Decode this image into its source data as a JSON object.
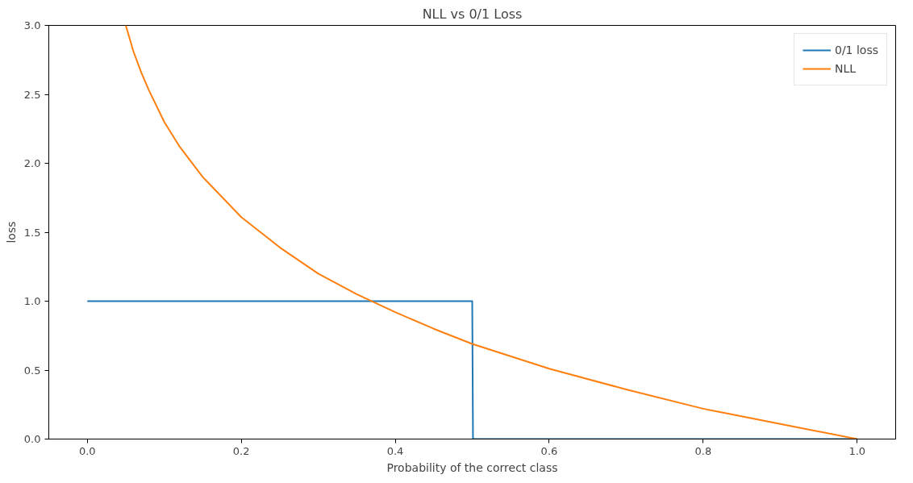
{
  "chart_data": {
    "type": "line",
    "title": "NLL vs 0/1 Loss",
    "xlabel": "Probability of the correct class",
    "ylabel": "loss",
    "xlim": [
      -0.05,
      1.05
    ],
    "ylim": [
      0,
      3
    ],
    "xticks": [
      {
        "value": 0,
        "label": "0.0"
      },
      {
        "value": 0.2,
        "label": "0.2"
      },
      {
        "value": 0.4,
        "label": "0.4"
      },
      {
        "value": 0.6,
        "label": "0.6"
      },
      {
        "value": 0.8,
        "label": "0.8"
      },
      {
        "value": 1,
        "label": "1.0"
      }
    ],
    "yticks": [
      {
        "value": 0,
        "label": "0.0"
      },
      {
        "value": 0.5,
        "label": "0.5"
      },
      {
        "value": 1,
        "label": "1.0"
      },
      {
        "value": 1.5,
        "label": "1.5"
      },
      {
        "value": 2,
        "label": "2.0"
      },
      {
        "value": 2.5,
        "label": "2.5"
      },
      {
        "value": 3,
        "label": "3.0"
      }
    ],
    "series": [
      {
        "name": "0/1 loss",
        "color": "#1f77b4",
        "x": [
          0,
          0.5,
          0.501,
          1
        ],
        "values": [
          1,
          1,
          0,
          0
        ]
      },
      {
        "name": "NLL",
        "color": "#ff7f0e",
        "x": [
          0.05,
          0.06,
          0.07,
          0.08,
          0.1,
          0.12,
          0.15,
          0.2,
          0.25,
          0.3,
          0.35,
          0.4,
          0.45,
          0.5,
          0.6,
          0.7,
          0.8,
          0.9,
          1.0
        ],
        "values": [
          3.0,
          2.81,
          2.66,
          2.53,
          2.3,
          2.12,
          1.9,
          1.61,
          1.39,
          1.2,
          1.05,
          0.92,
          0.8,
          0.69,
          0.51,
          0.36,
          0.22,
          0.11,
          0
        ]
      }
    ],
    "grid": false,
    "legend": "top right"
  }
}
